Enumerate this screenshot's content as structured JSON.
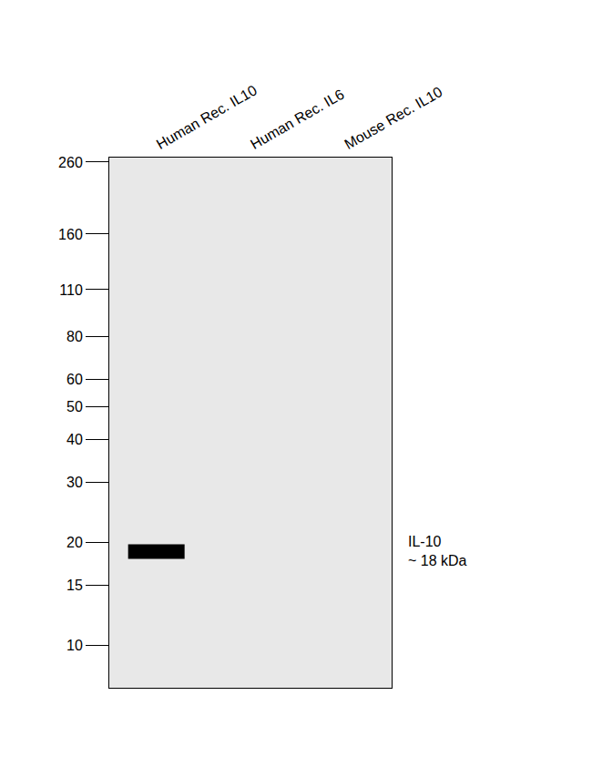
{
  "chart_data": {
    "type": "blot",
    "categories": [
      "Human Rec. IL10",
      "Human Rec. IL6",
      "Mouse Rec. IL10"
    ],
    "values": [
      18.8,
      null,
      null
    ],
    "color": "#000000",
    "annotation": "IL-10\n~ 18 kDa",
    "log": "y",
    "ylim": [
      7.5,
      268
    ],
    "yticks": [
      10,
      15,
      20,
      30,
      40,
      50,
      60,
      80,
      110,
      160,
      260
    ],
    "grid": false
  }
}
